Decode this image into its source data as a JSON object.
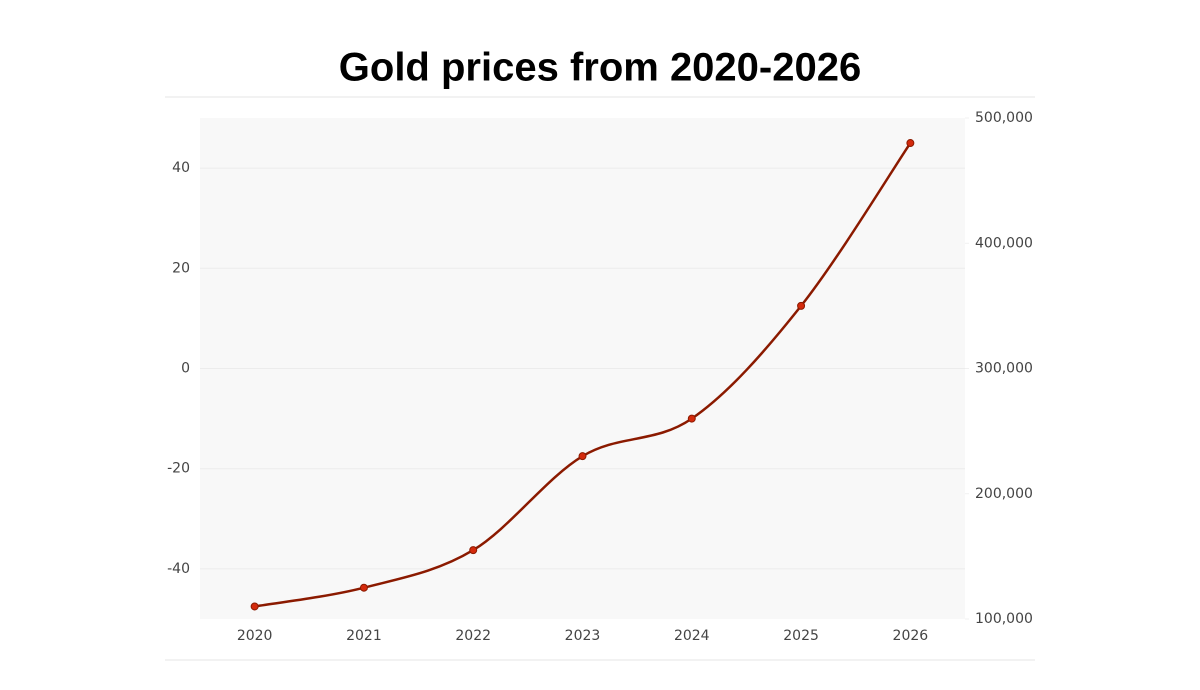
{
  "chart_data": {
    "type": "line",
    "title": "Gold prices from 2020-2026",
    "categories": [
      "2020",
      "2021",
      "2022",
      "2023",
      "2024",
      "2025",
      "2026"
    ],
    "series": [
      {
        "color": "#8b1a00",
        "marker_color": "#d42a0c",
        "axis": "y2",
        "values": [
          110000,
          125000,
          155000,
          230000,
          260000,
          350000,
          480000
        ]
      }
    ],
    "ylim": [
      -50,
      50
    ],
    "yticks": [
      -40,
      -20,
      0,
      20,
      40
    ],
    "y2lim": [
      100000,
      500000
    ],
    "y2ticks": [
      {
        "value": 100000,
        "label": "100,000"
      },
      {
        "value": 200000,
        "label": "200,000"
      },
      {
        "value": 300000,
        "label": "300,000"
      },
      {
        "value": 400000,
        "label": "400,000"
      },
      {
        "value": 500000,
        "label": "500,000"
      }
    ],
    "grid": true,
    "smooth": true
  }
}
